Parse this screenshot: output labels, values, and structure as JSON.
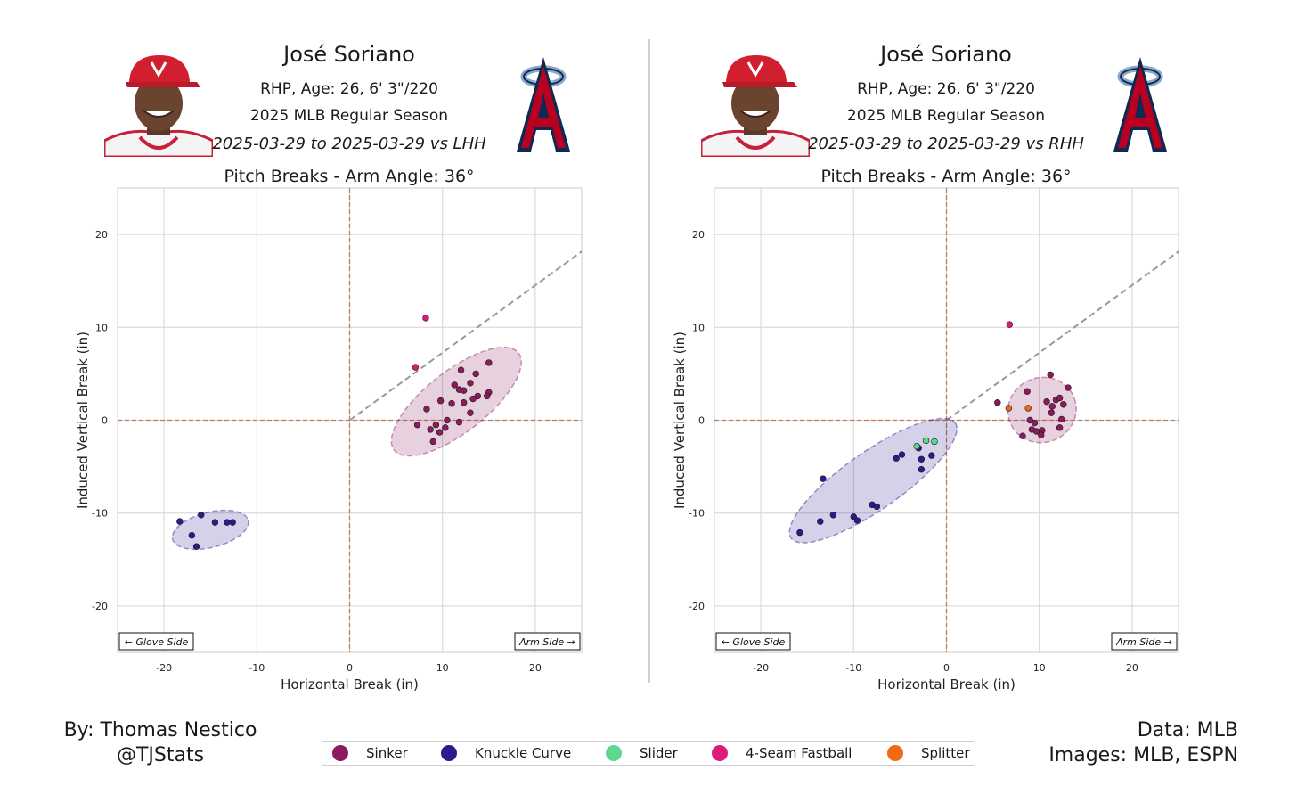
{
  "panels": [
    {
      "player_name": "José Soriano",
      "bio": "RHP, Age: 26, 6' 3\"/220",
      "season": "2025 MLB Regular Season",
      "split": "2025-03-29 to 2025-03-29 vs LHH",
      "plot_title": "Pitch Breaks - Arm Angle: 36°",
      "headshot_icon": "player-headshot",
      "logo_icon": "angels-logo"
    },
    {
      "player_name": "José Soriano",
      "bio": "RHP, Age: 26, 6' 3\"/220",
      "season": "2025 MLB Regular Season",
      "split": "2025-03-29 to 2025-03-29 vs RHH",
      "plot_title": "Pitch Breaks - Arm Angle: 36°",
      "headshot_icon": "player-headshot",
      "logo_icon": "angels-logo"
    }
  ],
  "credits": {
    "author_line1": "By: Thomas Nestico",
    "author_line2": "@TJStats",
    "data_line1": "Data: MLB",
    "data_line2": "Images: MLB, ESPN"
  },
  "legend": [
    {
      "name": "Sinker",
      "color": "#8c1a5e"
    },
    {
      "name": "Knuckle Curve",
      "color": "#2e1a8c"
    },
    {
      "name": "Slider",
      "color": "#5ed88f"
    },
    {
      "name": "4-Seam Fastball",
      "color": "#e0197d"
    },
    {
      "name": "Splitter",
      "color": "#ef6a12"
    }
  ],
  "chart_data": [
    {
      "type": "scatter",
      "title": "Pitch Breaks - Arm Angle: 36°",
      "xlabel": "Horizontal Break (in)",
      "ylabel": "Induced Vertical Break (in)",
      "xlim": [
        -25,
        25
      ],
      "ylim": [
        -25,
        25
      ],
      "xticks": [
        -20,
        -10,
        0,
        10,
        20
      ],
      "yticks": [
        -20,
        -10,
        0,
        10,
        20
      ],
      "grid": true,
      "arm_angle_deg": 36,
      "annotations": {
        "glove_side": "← Glove Side",
        "arm_side": "Arm Side →"
      },
      "series": [
        {
          "name": "Sinker",
          "color": "#8c1a5e",
          "ellipse": {
            "cx": 11.5,
            "cy": 2,
            "rx": 8.5,
            "ry": 3.3,
            "angle": 38
          },
          "points": [
            [
              8.3,
              1.2
            ],
            [
              7.3,
              -0.5
            ],
            [
              8.7,
              -1
            ],
            [
              9,
              -2.3
            ],
            [
              9.3,
              -0.5
            ],
            [
              9.7,
              -1.3
            ],
            [
              10.5,
              0
            ],
            [
              11,
              1.8
            ],
            [
              11.3,
              3.8
            ],
            [
              11.8,
              3.3
            ],
            [
              12.3,
              3.2
            ],
            [
              12,
              5.4
            ],
            [
              13,
              4
            ],
            [
              12.3,
              1.9
            ],
            [
              13.3,
              2.3
            ],
            [
              13.6,
              5
            ],
            [
              13,
              0.8
            ],
            [
              13.8,
              2.6
            ],
            [
              15,
              3
            ],
            [
              14.8,
              2.6
            ],
            [
              15,
              6.2
            ],
            [
              11.8,
              -0.2
            ],
            [
              9.8,
              2.1
            ],
            [
              10.3,
              -0.8
            ]
          ]
        },
        {
          "name": "Knuckle Curve",
          "color": "#2e1a8c",
          "ellipse": {
            "cx": -15,
            "cy": -11.8,
            "rx": 4.2,
            "ry": 1.9,
            "angle": 14
          },
          "points": [
            [
              -18.3,
              -10.9
            ],
            [
              -17,
              -12.4
            ],
            [
              -16.5,
              -13.6
            ],
            [
              -16,
              -10.2
            ],
            [
              -14.5,
              -11
            ],
            [
              -13.2,
              -11
            ],
            [
              -12.6,
              -11
            ]
          ]
        },
        {
          "name": "4-Seam Fastball",
          "color": "#e0197d",
          "points": [
            [
              8.2,
              11
            ],
            [
              7.1,
              5.7
            ]
          ]
        }
      ]
    },
    {
      "type": "scatter",
      "title": "Pitch Breaks - Arm Angle: 36°",
      "xlabel": "Horizontal Break (in)",
      "ylabel": "Induced Vertical Break (in)",
      "xlim": [
        -25,
        25
      ],
      "ylim": [
        -25,
        25
      ],
      "xticks": [
        -20,
        -10,
        0,
        10,
        20
      ],
      "yticks": [
        -20,
        -10,
        0,
        10,
        20
      ],
      "grid": true,
      "arm_angle_deg": 36,
      "annotations": {
        "glove_side": "← Glove Side",
        "arm_side": "Arm Side →"
      },
      "series": [
        {
          "name": "Sinker",
          "color": "#8c1a5e",
          "ellipse": {
            "cx": 10.3,
            "cy": 1.1,
            "rx": 3.7,
            "ry": 3.5,
            "angle": 20
          },
          "points": [
            [
              5.5,
              1.9
            ],
            [
              8.7,
              3.1
            ],
            [
              9,
              0
            ],
            [
              9.2,
              -1
            ],
            [
              9.7,
              -1.2
            ],
            [
              9.5,
              -0.3
            ],
            [
              10.3,
              -1.1
            ],
            [
              10.2,
              -1.6
            ],
            [
              10.8,
              2
            ],
            [
              11.2,
              4.9
            ],
            [
              11.4,
              1.5
            ],
            [
              11.3,
              0.8
            ],
            [
              11.8,
              2.2
            ],
            [
              12.2,
              -0.8
            ],
            [
              12.2,
              2.4
            ],
            [
              12.6,
              1.7
            ],
            [
              12.4,
              0.1
            ],
            [
              13.1,
              3.5
            ],
            [
              8.2,
              -1.7
            ]
          ]
        },
        {
          "name": "Knuckle Curve",
          "color": "#2e1a8c",
          "ellipse": {
            "cx": -7.9,
            "cy": -6.5,
            "rx": 10.8,
            "ry": 3.1,
            "angle": 35
          },
          "points": [
            [
              -15.8,
              -12.1
            ],
            [
              -13.6,
              -10.9
            ],
            [
              -12.2,
              -10.2
            ],
            [
              -13.3,
              -6.3
            ],
            [
              -10,
              -10.4
            ],
            [
              -9.6,
              -10.8
            ],
            [
              -8,
              -9.1
            ],
            [
              -7.5,
              -9.3
            ],
            [
              -5.4,
              -4.1
            ],
            [
              -4.8,
              -3.7
            ],
            [
              -2.7,
              -5.3
            ],
            [
              -2.7,
              -4.2
            ],
            [
              -1.6,
              -3.8
            ],
            [
              -3,
              -3
            ]
          ]
        },
        {
          "name": "Slider",
          "color": "#5ed88f",
          "points": [
            [
              -3.2,
              -2.8
            ],
            [
              -2.2,
              -2.2
            ],
            [
              -1.3,
              -2.3
            ]
          ]
        },
        {
          "name": "4-Seam Fastball",
          "color": "#e0197d",
          "points": [
            [
              6.8,
              10.3
            ]
          ]
        },
        {
          "name": "Splitter",
          "color": "#ef6a12",
          "points": [
            [
              6.7,
              1.3
            ],
            [
              8.8,
              1.3
            ]
          ]
        }
      ]
    }
  ]
}
